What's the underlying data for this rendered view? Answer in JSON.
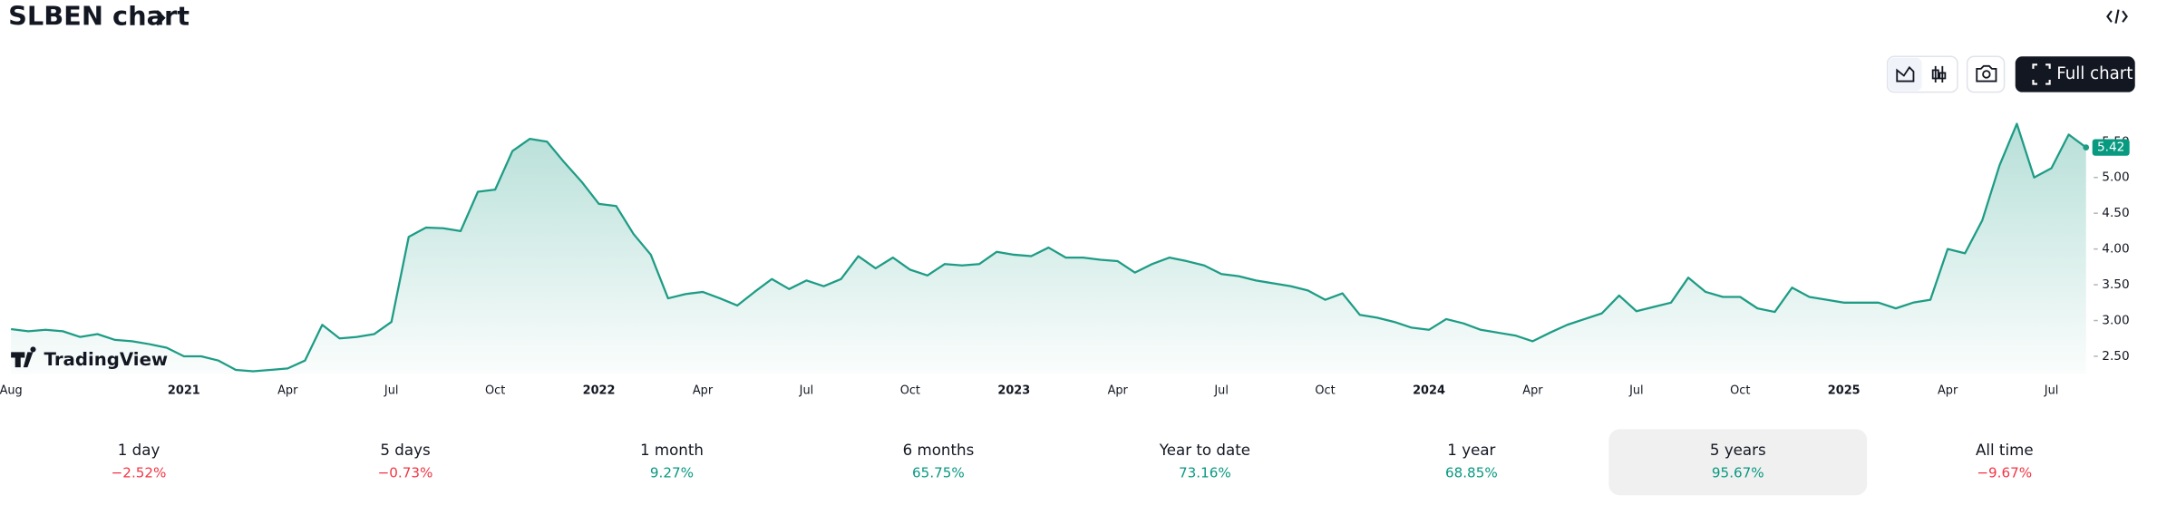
{
  "header": {
    "title": "SLBEN chart"
  },
  "toolbar": {
    "full_chart": "Full chart"
  },
  "logo": "TradingView",
  "chart_data": {
    "type": "area",
    "color": "#1e9c85",
    "last_badge_color": "#089981",
    "categories": [
      "Aug",
      null,
      null,
      null,
      null,
      null,
      null,
      null,
      null,
      null,
      "2021",
      null,
      null,
      null,
      null,
      null,
      "Apr",
      null,
      null,
      null,
      null,
      null,
      "Jul",
      null,
      null,
      null,
      null,
      null,
      "Oct",
      null,
      null,
      null,
      null,
      null,
      "2022",
      null,
      null,
      null,
      null,
      null,
      "Apr",
      null,
      null,
      null,
      null,
      null,
      "Jul",
      null,
      null,
      null,
      null,
      null,
      "Oct",
      null,
      null,
      null,
      null,
      null,
      "2023",
      null,
      null,
      null,
      null,
      null,
      "Apr",
      null,
      null,
      null,
      null,
      null,
      "Jul",
      null,
      null,
      null,
      null,
      null,
      "Oct",
      null,
      null,
      null,
      null,
      null,
      "2024",
      null,
      null,
      null,
      null,
      null,
      "Apr",
      null,
      null,
      null,
      null,
      null,
      "Jul",
      null,
      null,
      null,
      null,
      null,
      "Oct",
      null,
      null,
      null,
      null,
      null,
      "2025",
      null,
      null,
      null,
      null,
      null,
      "Apr",
      null,
      null,
      null,
      null,
      null,
      "Jul",
      null,
      null
    ],
    "values": [
      2.88,
      2.85,
      2.87,
      2.85,
      2.77,
      2.81,
      2.73,
      2.71,
      2.67,
      2.62,
      2.5,
      2.5,
      2.44,
      2.31,
      2.29,
      2.31,
      2.33,
      2.44,
      2.94,
      2.75,
      2.77,
      2.81,
      2.98,
      4.17,
      4.3,
      4.29,
      4.25,
      4.8,
      4.83,
      5.37,
      5.54,
      5.5,
      5.21,
      4.94,
      4.63,
      4.6,
      4.21,
      3.92,
      3.31,
      3.37,
      3.4,
      3.31,
      3.21,
      3.4,
      3.58,
      3.44,
      3.56,
      3.48,
      3.58,
      3.9,
      3.73,
      3.88,
      3.71,
      3.63,
      3.79,
      3.77,
      3.79,
      3.96,
      3.92,
      3.9,
      4.02,
      3.88,
      3.88,
      3.85,
      3.83,
      3.67,
      3.79,
      3.88,
      3.83,
      3.77,
      3.65,
      3.62,
      3.56,
      3.52,
      3.48,
      3.42,
      3.29,
      3.38,
      3.08,
      3.04,
      2.98,
      2.9,
      2.87,
      3.02,
      2.96,
      2.87,
      2.83,
      2.79,
      2.71,
      2.83,
      2.94,
      3.02,
      3.1,
      3.35,
      3.13,
      3.19,
      3.25,
      3.6,
      3.4,
      3.33,
      3.33,
      3.17,
      3.12,
      3.46,
      3.33,
      3.29,
      3.25,
      3.25,
      3.25,
      3.17,
      3.25,
      3.29,
      4.0,
      3.94,
      4.4,
      5.17,
      5.75,
      5.0,
      5.13,
      5.6,
      5.42
    ],
    "ylim": [
      2.25,
      6.0
    ],
    "yticks": [
      {
        "value": 2.5,
        "label": "2.50"
      },
      {
        "value": 3,
        "label": "3.00"
      },
      {
        "value": 3.5,
        "label": "3.50"
      },
      {
        "value": 4,
        "label": "4.00"
      },
      {
        "value": 4.5,
        "label": "4.50"
      },
      {
        "value": 5,
        "label": "5.00"
      },
      {
        "value": 5.5,
        "label": "5.50"
      }
    ],
    "grid": false
  },
  "performance": {
    "selected": 6,
    "items": [
      {
        "label": "1 day",
        "change": "−2.52%",
        "color": "#f23645"
      },
      {
        "label": "5 days",
        "change": "−0.73%",
        "color": "#f23645"
      },
      {
        "label": "1 month",
        "change": "9.27%",
        "color": "#089981"
      },
      {
        "label": "6 months",
        "change": "65.75%",
        "color": "#089981"
      },
      {
        "label": "Year to date",
        "change": "73.16%",
        "color": "#089981"
      },
      {
        "label": "1 year",
        "change": "68.85%",
        "color": "#089981"
      },
      {
        "label": "5 years",
        "change": "95.67%",
        "color": "#089981"
      },
      {
        "label": "All time",
        "change": "−9.67%",
        "color": "#f23645"
      }
    ]
  }
}
